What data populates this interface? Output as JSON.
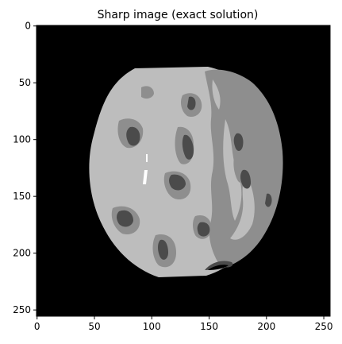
{
  "title": "Sharp image (exact solution)",
  "image": {
    "width": 256,
    "height": 256,
    "colormap": "gray",
    "levels": {
      "background": "#000000",
      "light_gray": "#bdbdbd",
      "mid_gray": "#8e8e8e",
      "dark_gray": "#4b4b4b",
      "white": "#ffffff"
    }
  },
  "axes": {
    "x_ticks": [
      0,
      50,
      100,
      150,
      200,
      250
    ],
    "y_ticks": [
      0,
      50,
      100,
      150,
      200,
      250
    ],
    "x_tick_labels": [
      "0",
      "50",
      "100",
      "150",
      "200",
      "250"
    ],
    "y_tick_labels": [
      "0",
      "50",
      "100",
      "150",
      "200",
      "250"
    ],
    "xlim": [
      -0.5,
      255.5
    ],
    "ylim": [
      255.5,
      -0.5
    ],
    "grid": false
  }
}
